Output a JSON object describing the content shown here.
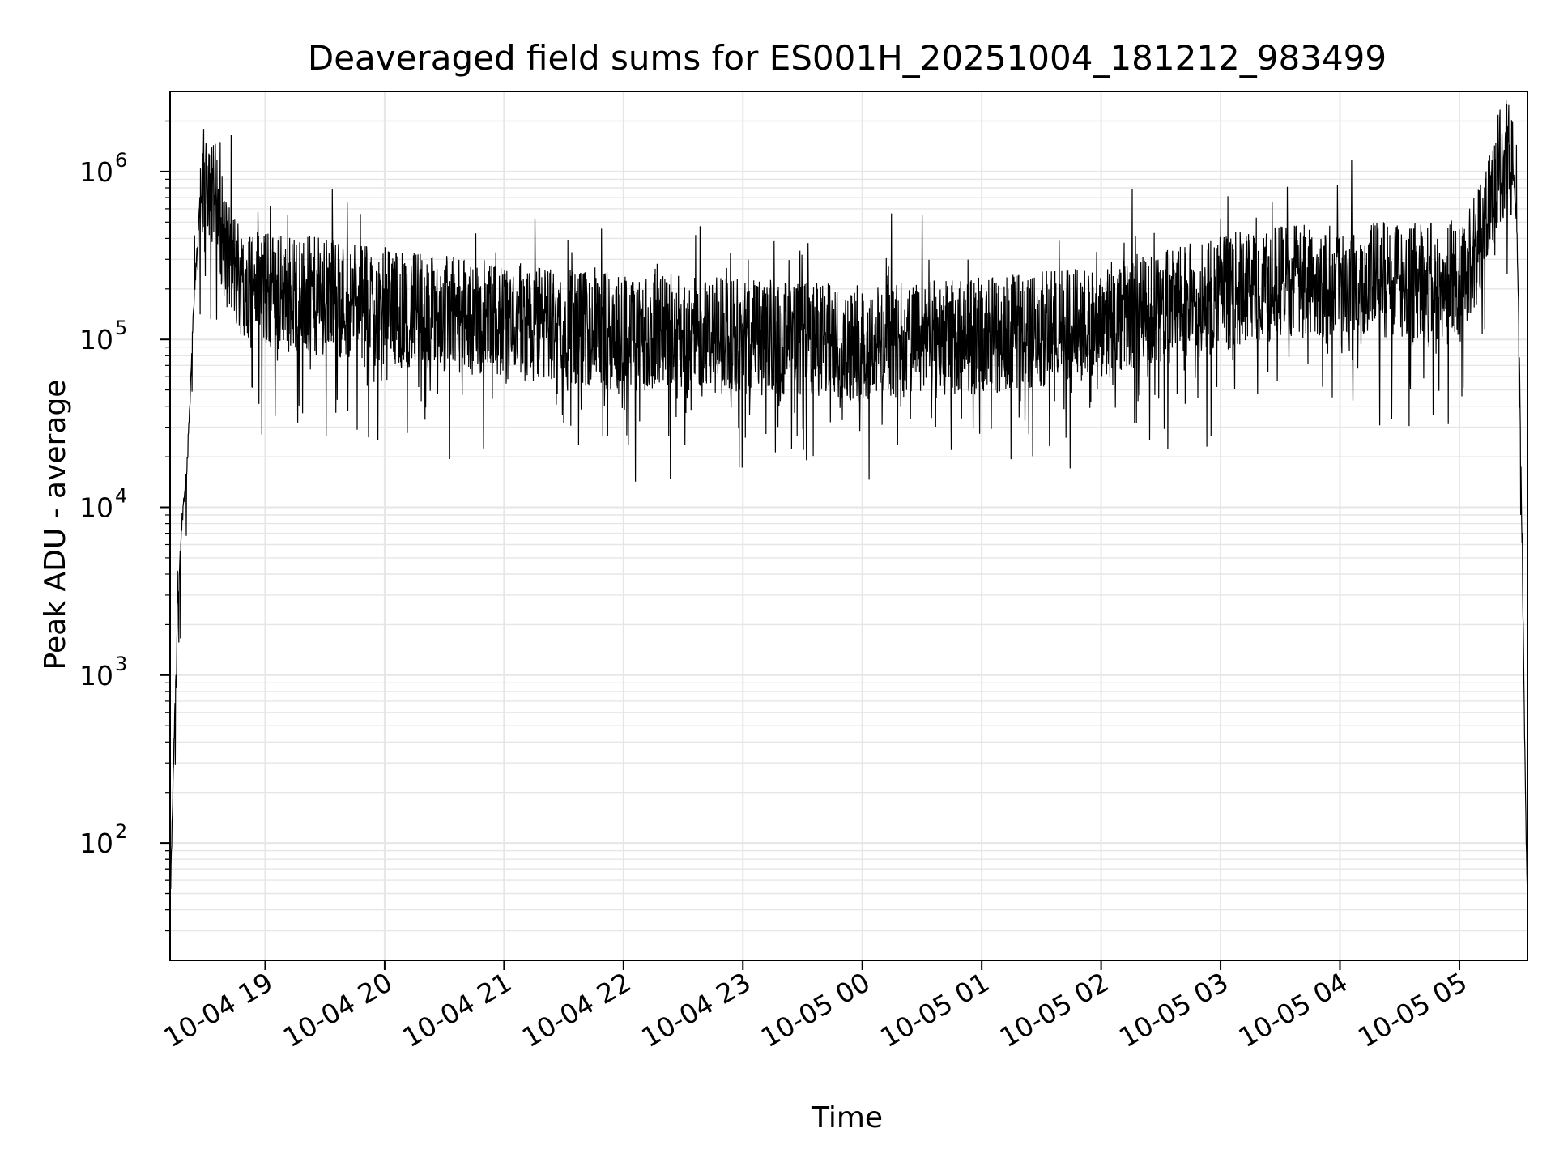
{
  "chart_data": {
    "type": "line",
    "title": "Deaveraged field sums for ES001H_20251004_181212_983499",
    "xlabel": "Time",
    "ylabel": "Peak ADU - average",
    "yscale": "log",
    "ylim": [
      20,
      3000000
    ],
    "xlim_hours": [
      18.2033,
      29.57
    ],
    "grid": true,
    "line_color": "#000000",
    "x_ticks": [
      {
        "hour": 19,
        "label": "10-04 19"
      },
      {
        "hour": 20,
        "label": "10-04 20"
      },
      {
        "hour": 21,
        "label": "10-04 21"
      },
      {
        "hour": 22,
        "label": "10-04 22"
      },
      {
        "hour": 23,
        "label": "10-04 23"
      },
      {
        "hour": 24,
        "label": "10-05 00"
      },
      {
        "hour": 25,
        "label": "10-05 01"
      },
      {
        "hour": 26,
        "label": "10-05 02"
      },
      {
        "hour": 27,
        "label": "10-05 03"
      },
      {
        "hour": 28,
        "label": "10-05 04"
      },
      {
        "hour": 29,
        "label": "10-05 05"
      }
    ],
    "y_ticks": [
      {
        "value": 100,
        "base": "10",
        "exp": "2"
      },
      {
        "value": 1000,
        "base": "10",
        "exp": "3"
      },
      {
        "value": 10000,
        "base": "10",
        "exp": "4"
      },
      {
        "value": 100000,
        "base": "10",
        "exp": "5"
      },
      {
        "value": 1000000,
        "base": "10",
        "exp": "6"
      }
    ],
    "series": [
      {
        "name": "Peak ADU - average",
        "envelope_hours": [
          18.2033,
          18.24,
          18.27,
          18.3,
          18.35,
          18.4,
          18.45,
          18.5,
          18.55,
          18.6,
          18.65,
          18.7,
          18.75,
          18.8,
          19.0,
          19.5,
          20.0,
          20.5,
          21.0,
          21.5,
          22.0,
          22.5,
          23.0,
          23.5,
          24.0,
          24.5,
          25.0,
          25.5,
          26.0,
          26.5,
          27.0,
          27.5,
          28.0,
          28.5,
          28.9,
          29.0,
          29.1,
          29.2,
          29.25,
          29.3,
          29.35,
          29.4,
          29.45,
          29.48,
          29.5,
          29.52,
          29.54,
          29.56,
          29.57
        ],
        "envelope_median": [
          40,
          500,
          3000,
          8000,
          20000,
          150000,
          600000,
          950000,
          900000,
          600000,
          400000,
          300000,
          260000,
          230000,
          200000,
          180000,
          160000,
          140000,
          130000,
          120000,
          110000,
          110000,
          105000,
          100000,
          95000,
          100000,
          105000,
          115000,
          130000,
          150000,
          190000,
          220000,
          230000,
          230000,
          220000,
          230000,
          300000,
          500000,
          700000,
          900000,
          1100000,
          1200000,
          1000000,
          500000,
          100000,
          10000,
          1000,
          100,
          40
        ],
        "noise_dex": 0.35
      }
    ]
  }
}
